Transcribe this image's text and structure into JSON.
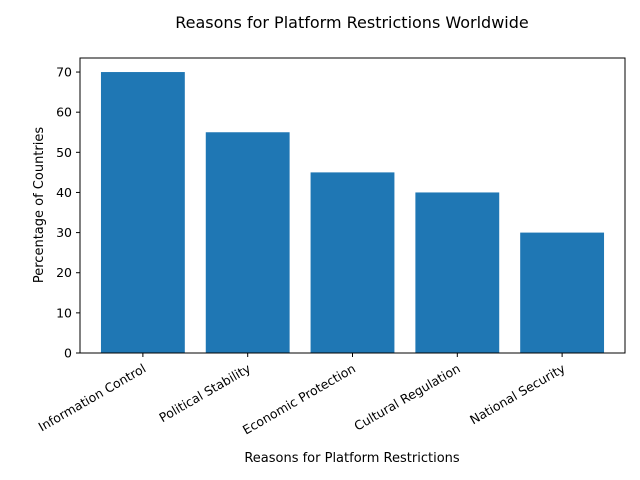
{
  "chart_data": {
    "type": "bar",
    "title": "Reasons for Platform Restrictions Worldwide",
    "xlabel": "Reasons for Platform Restrictions",
    "ylabel": "Percentage of Countries",
    "categories": [
      "Information Control",
      "Political Stability",
      "Economic Protection",
      "Cultural Regulation",
      "National Security"
    ],
    "values": [
      70,
      55,
      45,
      40,
      30
    ],
    "ylim": [
      0,
      73.5
    ],
    "yticks": [
      0,
      10,
      20,
      30,
      40,
      50,
      60,
      70
    ],
    "bar_color": "#1f77b4",
    "grid": false,
    "legend": "none"
  }
}
